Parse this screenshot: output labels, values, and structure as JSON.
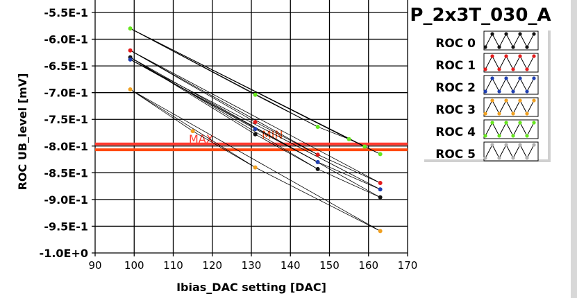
{
  "chart_data": {
    "type": "scatter",
    "title": "P_2x3T_030_A",
    "xlabel": "Ibias_DAC setting [DAC]",
    "ylabel": "ROC UB_level [mV]",
    "xlim": [
      90,
      170
    ],
    "ylim": [
      -1.0,
      -0.55
    ],
    "xticks": [
      "90",
      "100",
      "110",
      "120",
      "130",
      "140",
      "150",
      "160",
      "170"
    ],
    "yticks": [
      "-5.5E-1",
      "-6.0E-1",
      "-6.5E-1",
      "-7.0E-1",
      "-7.5E-1",
      "-8.0E-1",
      "-8.5E-1",
      "-9.0E-1",
      "-9.5E-1",
      "-1.0E+0"
    ],
    "grid": true,
    "legend_placement": "right",
    "thresholds": [
      {
        "label": "MAX",
        "value": -0.796,
        "color": "#ff3b30"
      },
      {
        "label": "MIN",
        "value": -0.807,
        "color": "#ff4a10"
      }
    ],
    "series": [
      {
        "name": "ROC 0",
        "color": "#111111",
        "points": [
          [
            99,
            -0.634
          ],
          [
            131,
            -0.778
          ],
          [
            147,
            -0.843
          ],
          [
            163,
            -0.896
          ]
        ]
      },
      {
        "name": "ROC 1",
        "color": "#e31b1b",
        "points": [
          [
            99,
            -0.621
          ],
          [
            131,
            -0.755
          ],
          [
            147,
            -0.816
          ],
          [
            163,
            -0.869
          ]
        ]
      },
      {
        "name": "ROC 2",
        "color": "#1f3fb0",
        "points": [
          [
            99,
            -0.638
          ],
          [
            131,
            -0.768
          ],
          [
            147,
            -0.83
          ],
          [
            163,
            -0.881
          ]
        ]
      },
      {
        "name": "ROC 3",
        "color": "#f0a020",
        "points": [
          [
            99,
            -0.694
          ],
          [
            115,
            -0.772
          ],
          [
            131,
            -0.84
          ],
          [
            163,
            -0.959
          ]
        ]
      },
      {
        "name": "ROC 4",
        "color": "#66e61e",
        "points": [
          [
            99,
            -0.58
          ],
          [
            131,
            -0.704
          ],
          [
            147,
            -0.764
          ],
          [
            155,
            -0.787
          ],
          [
            159,
            -0.801
          ],
          [
            163,
            -0.815
          ]
        ]
      },
      {
        "name": "ROC 5",
        "color": "#b0b0b0",
        "points": []
      }
    ]
  }
}
